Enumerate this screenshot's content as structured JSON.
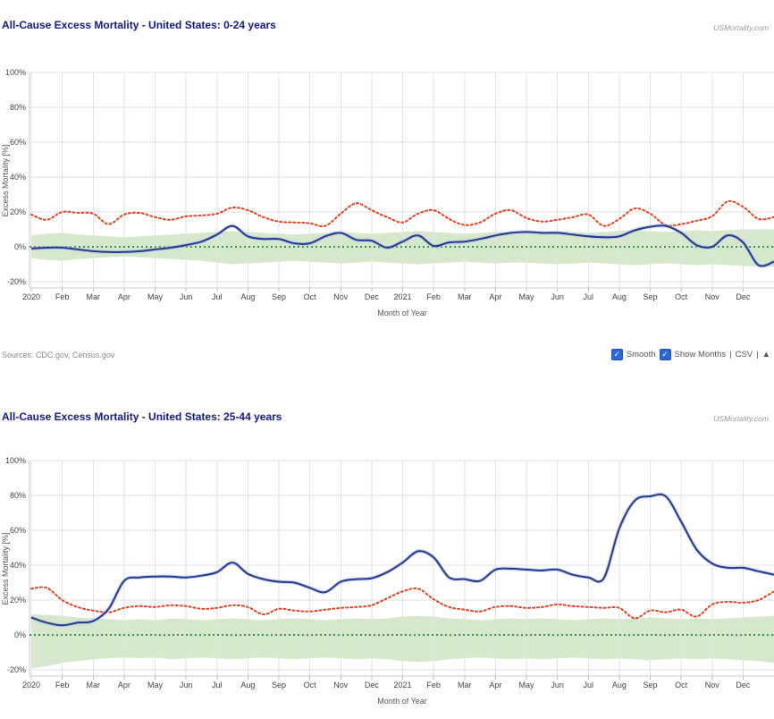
{
  "panels": [
    {
      "title": "All-Cause Excess Mortality - United States: 0-24 years",
      "watermark": "USMortality.com"
    },
    {
      "title": "All-Cause Excess Mortality - United States: 25-44 years",
      "watermark": "USMortality.com"
    }
  ],
  "footer": {
    "sources": "Sources: CDC.gov, Census.gov",
    "checkbox_glyph": "✓",
    "smooth_label": "Smooth",
    "show_months_label": "Show Months",
    "sep": "|",
    "csv_label": "CSV",
    "top_label": "▲"
  },
  "colors": {
    "title": "#15188f",
    "excess_line": "#24388f",
    "excess_halo": "#a9bbe2",
    "baseline_dotted_red": "#e8401f",
    "zero_dotted_green": "#2f9e41",
    "confidence_band": "#d5e8cc",
    "grid": "#e2e2e2",
    "checkbox_blue": "#2a66dd"
  },
  "chart_data": [
    {
      "type": "line",
      "title": "All-Cause Excess Mortality - United States: 0-24 years",
      "xlabel": "Month of Year",
      "ylabel": "Excess Mortality [%]",
      "x_tick_labels": [
        "2020",
        "Feb",
        "Mar",
        "Apr",
        "May",
        "Jun",
        "Jul",
        "Aug",
        "Sep",
        "Oct",
        "Nov",
        "Dec",
        "2021",
        "Feb",
        "Mar",
        "Apr",
        "May",
        "Jun",
        "Jul",
        "Aug",
        "Sep",
        "Oct",
        "Nov",
        "Dec"
      ],
      "y_tick_labels": [
        "100%",
        "80%",
        "60%",
        "40%",
        "20%",
        "0%",
        "-20%"
      ],
      "y_ticks": [
        100,
        80,
        60,
        40,
        20,
        0,
        -20
      ],
      "ylim": [
        -25,
        105
      ],
      "grid": true,
      "legend": "none",
      "x_step_months": 0.5,
      "baseline_value": 0,
      "baseline_color": "#2f9e41",
      "band": {
        "name": "confidence-band",
        "color": "#d5e8cc",
        "upper": [
          6.5,
          7.5,
          8,
          7,
          6.5,
          6,
          5.5,
          6,
          6.5,
          7,
          7.5,
          8,
          8.5,
          9,
          8.5,
          8,
          7.5,
          7,
          7.5,
          8,
          8.5,
          8,
          7.5,
          8,
          8.5,
          9,
          8.5,
          8,
          7.5,
          8,
          8.5,
          8,
          8,
          8.5,
          9,
          8.5,
          8,
          8.5,
          9,
          9.5,
          9,
          8.5,
          9,
          9.5,
          9,
          9.5,
          10,
          10,
          10
        ],
        "lower": [
          -6.5,
          -7.5,
          -8,
          -7,
          -6.5,
          -6,
          -5.5,
          -6,
          -6.5,
          -7,
          -7.5,
          -8,
          -9,
          -10,
          -9.5,
          -9,
          -8.5,
          -8,
          -8.5,
          -9,
          -9.5,
          -9,
          -8.5,
          -9,
          -9.5,
          -10,
          -9.5,
          -9,
          -8.5,
          -9,
          -9.5,
          -9,
          -9,
          -9.5,
          -10,
          -9.5,
          -9,
          -9.5,
          -10,
          -10.5,
          -10,
          -9.5,
          -10,
          -10.5,
          -10,
          -10.5,
          -11,
          -11.5,
          -11.5
        ]
      },
      "series": [
        {
          "name": "expected-baseline",
          "color": "#e8401f",
          "style": "dotted",
          "values": [
            18.5,
            15.5,
            20,
            19.5,
            19,
            13,
            18.5,
            19.5,
            17,
            15.5,
            17.5,
            18,
            19,
            22.5,
            21,
            17,
            14.5,
            14,
            13.5,
            12,
            19,
            25,
            21,
            17,
            14,
            19,
            21,
            16,
            12.5,
            14,
            19,
            21,
            16.5,
            14.5,
            15.5,
            17,
            18.5,
            12,
            16,
            22,
            19,
            12.5,
            13,
            15,
            17.5,
            26,
            23,
            16,
            17
          ]
        },
        {
          "name": "excess-mortality",
          "color": "#24388f",
          "halo": "#a9bbe2",
          "style": "solid",
          "values": [
            -1,
            -0.5,
            -0.5,
            -1.5,
            -2.5,
            -3,
            -3,
            -2.5,
            -1.5,
            -0.5,
            1,
            3,
            7,
            12,
            6,
            4.5,
            4.5,
            2,
            2,
            6,
            8,
            4,
            3.5,
            -0.5,
            3,
            6.5,
            0.5,
            2.5,
            3,
            4.5,
            6.5,
            8,
            8.5,
            8,
            8,
            7,
            6,
            5.5,
            6,
            9.5,
            11.5,
            12,
            8,
            1,
            0,
            6.5,
            2.5,
            -10.5,
            -8.5
          ]
        }
      ]
    },
    {
      "type": "line",
      "title": "All-Cause Excess Mortality - United States: 25-44 years",
      "xlabel": "Month of Year",
      "ylabel": "Excess Mortality [%]",
      "x_tick_labels": [
        "2020",
        "Feb",
        "Mar",
        "Apr",
        "May",
        "Jun",
        "Jul",
        "Aug",
        "Sep",
        "Oct",
        "Nov",
        "Dec",
        "2021",
        "Feb",
        "Mar",
        "Apr",
        "May",
        "Jun",
        "Jul",
        "Aug",
        "Sep",
        "Oct",
        "Nov",
        "Dec"
      ],
      "y_tick_labels": [
        "100%",
        "80%",
        "60%",
        "40%",
        "20%",
        "0%",
        "-20%"
      ],
      "y_ticks": [
        100,
        80,
        60,
        40,
        20,
        0,
        -20
      ],
      "ylim": [
        -25,
        105
      ],
      "grid": true,
      "legend": "none",
      "x_step_months": 0.5,
      "baseline_value": 0,
      "baseline_color": "#2f9e41",
      "band": {
        "name": "confidence-band",
        "color": "#d5e8cc",
        "upper": [
          12,
          11.5,
          11,
          10,
          9.5,
          9,
          8.5,
          9,
          8.5,
          9.5,
          9,
          8.5,
          9,
          9.5,
          9,
          8.5,
          9,
          9.5,
          9,
          8.5,
          9,
          9.5,
          9,
          9.5,
          10.5,
          11,
          10.5,
          9.5,
          9,
          8.5,
          9,
          9.5,
          9,
          9.5,
          9,
          8.5,
          9,
          9.5,
          9,
          9.5,
          10,
          9.5,
          9,
          9.5,
          9,
          9.5,
          10,
          10.5,
          11
        ],
        "lower": [
          -19,
          -18,
          -16,
          -15,
          -14,
          -13.5,
          -13,
          -13.5,
          -13,
          -14,
          -13.5,
          -13,
          -13.5,
          -14,
          -13.5,
          -13,
          -13.5,
          -14,
          -13.5,
          -13,
          -13.5,
          -14,
          -13.5,
          -14,
          -15,
          -15.5,
          -15,
          -14,
          -13.5,
          -13,
          -13.5,
          -14,
          -13.5,
          -14,
          -13.5,
          -13,
          -13.5,
          -14,
          -13.5,
          -14,
          -14.5,
          -14,
          -13.5,
          -14,
          -13.5,
          -14,
          -14.5,
          -15,
          -16
        ]
      },
      "series": [
        {
          "name": "expected-baseline",
          "color": "#e8401f",
          "style": "dotted",
          "values": [
            26.5,
            27,
            20,
            16,
            14,
            13,
            15.5,
            16.5,
            16,
            17,
            16.5,
            15,
            15.5,
            17,
            16,
            11.8,
            15,
            14,
            13.5,
            14.5,
            15.5,
            16,
            17,
            21,
            25,
            26.5,
            20.5,
            16,
            14.5,
            13.5,
            16,
            16.5,
            15.5,
            16,
            17.5,
            16.5,
            16,
            15.5,
            15.5,
            9.5,
            14,
            13,
            14.5,
            10.5,
            17.5,
            19,
            18.5,
            20,
            25
          ]
        },
        {
          "name": "excess-mortality",
          "color": "#24388f",
          "halo": "#a9bbe2",
          "style": "solid",
          "values": [
            10,
            7,
            5.5,
            7,
            8,
            15,
            31,
            33,
            33.5,
            33.5,
            33,
            34,
            36,
            41.5,
            35,
            32,
            30.5,
            30,
            27,
            24.5,
            30.5,
            32,
            32.5,
            36,
            41.5,
            48,
            44.5,
            33,
            32,
            31,
            37.5,
            38,
            37.5,
            37,
            37.5,
            34.5,
            33,
            32.5,
            61,
            77,
            79.5,
            79.5,
            65,
            49,
            41,
            38.5,
            38.5,
            36.5,
            34.5
          ]
        }
      ]
    }
  ]
}
